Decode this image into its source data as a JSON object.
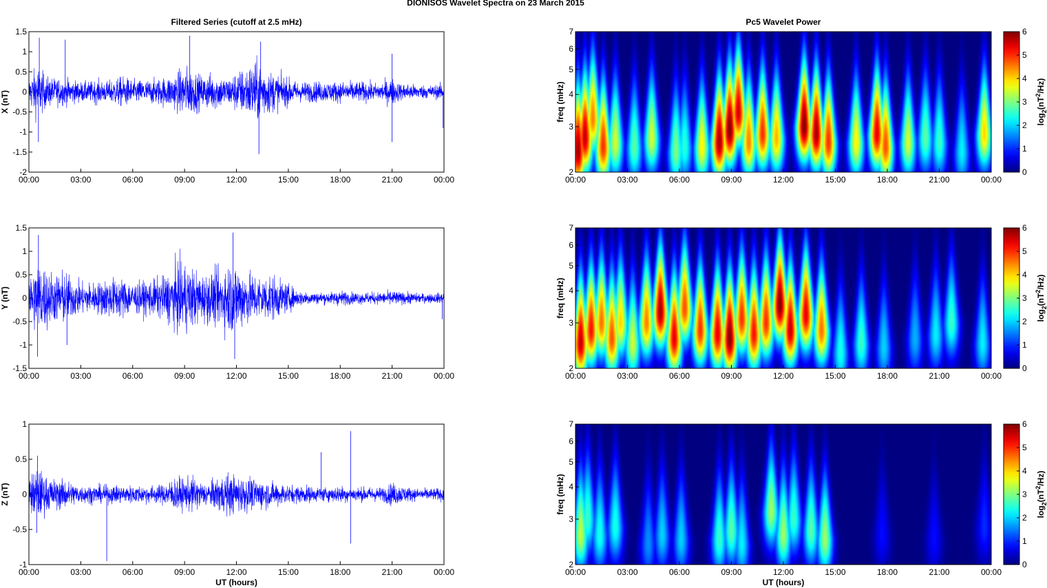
{
  "figure": {
    "title": "DIONISOS Wavelet Spectra on 23 March     2015",
    "left_title": "Filtered Series (cutoff at 2.5 mHz)",
    "right_title": "Pc5 Wavelet Power"
  },
  "colors": {
    "series_line": "#0000ff",
    "heatmap_colormap": "jet",
    "axes": "#000000"
  },
  "chart_data": [
    {
      "type": "line",
      "panel": "X",
      "title": "Filtered Series (cutoff at 2.5 mHz)",
      "ylabel": "X (nT)",
      "xlabel": "",
      "xlim": [
        0,
        24
      ],
      "ylim": [
        -2,
        1.5
      ],
      "x_tick_labels": [
        "00:00",
        "03:00",
        "06:00",
        "09:00",
        "12:00",
        "15:00",
        "18:00",
        "21:00",
        "00:00"
      ],
      "y_ticks": [
        -2,
        -1.5,
        -1,
        -0.5,
        0,
        0.5,
        1,
        1.5
      ],
      "y_tick_labels": [
        "-2",
        "-1.5",
        "-1",
        "-0.5",
        "0",
        "0.5",
        "1",
        "1.5"
      ],
      "grid": false,
      "series": [
        {
          "name": "",
          "color": "#0000ff"
        }
      ],
      "envelope": {
        "x": [
          0,
          0.5,
          1,
          1.5,
          2,
          2.5,
          3,
          3.5,
          4,
          4.5,
          5,
          5.5,
          6,
          6.5,
          7,
          7.5,
          8,
          8.5,
          9,
          9.5,
          10,
          10.5,
          11,
          11.5,
          12,
          12.5,
          13,
          13.5,
          14,
          14.5,
          15,
          15.5,
          16,
          16.5,
          17,
          17.5,
          18,
          18.5,
          19,
          19.5,
          20,
          20.5,
          21,
          21.5,
          22,
          22.5,
          23,
          23.5,
          24
        ],
        "amplitude": [
          0.4,
          0.8,
          0.45,
          0.4,
          0.4,
          0.35,
          0.3,
          0.3,
          0.35,
          0.3,
          0.4,
          0.45,
          0.35,
          0.35,
          0.35,
          0.4,
          0.45,
          0.55,
          0.75,
          0.65,
          0.45,
          0.55,
          0.5,
          0.4,
          0.6,
          0.7,
          0.9,
          0.8,
          0.6,
          0.5,
          0.4,
          0.3,
          0.3,
          0.3,
          0.3,
          0.3,
          0.3,
          0.3,
          0.3,
          0.3,
          0.25,
          0.3,
          0.4,
          0.25,
          0.25,
          0.2,
          0.2,
          0.2,
          0.25
        ]
      },
      "spikes": [
        {
          "x": 0.6,
          "y": 1.35
        },
        {
          "x": 0.55,
          "y": -1.25
        },
        {
          "x": 2.1,
          "y": 1.3
        },
        {
          "x": 9.3,
          "y": 1.4
        },
        {
          "x": 13.4,
          "y": 1.25
        },
        {
          "x": 13.3,
          "y": -1.55
        },
        {
          "x": 21.0,
          "y": 0.95
        },
        {
          "x": 21.0,
          "y": -1.25
        },
        {
          "x": 23.95,
          "y": -0.9
        }
      ]
    },
    {
      "type": "heatmap",
      "panel": "X",
      "title": "Pc5 Wavelet Power",
      "ylabel": "freq (mHz)",
      "xlabel": "",
      "xlim": [
        0,
        24
      ],
      "ylim": [
        2,
        7
      ],
      "y_scale": "log",
      "x_tick_labels": [
        "00:00",
        "03:00",
        "06:00",
        "09:00",
        "12:00",
        "15:00",
        "18:00",
        "21:00",
        "00:00"
      ],
      "y_ticks": [
        2,
        3,
        4,
        5,
        6,
        7
      ],
      "y_tick_labels": [
        "2",
        "3",
        "4",
        "5",
        "6",
        "7"
      ],
      "colorbar": {
        "label": "log2(nT^2/Hz)",
        "min": 0,
        "max": 6,
        "ticks": [
          "0",
          "1",
          "2",
          "3",
          "4",
          "5",
          "6"
        ],
        "colormap": "jet"
      },
      "bursts": [
        {
          "t": 0.15,
          "f": 2.4,
          "p": 5.8
        },
        {
          "t": 0.55,
          "f": 2.7,
          "p": 5.6
        },
        {
          "t": 1.0,
          "f": 3.2,
          "p": 4.5
        },
        {
          "t": 1.6,
          "f": 2.5,
          "p": 5.0
        },
        {
          "t": 2.3,
          "f": 2.6,
          "p": 3.5
        },
        {
          "t": 3.4,
          "f": 2.5,
          "p": 2.8
        },
        {
          "t": 4.4,
          "f": 2.7,
          "p": 3.5
        },
        {
          "t": 5.8,
          "f": 2.4,
          "p": 3.0
        },
        {
          "t": 6.3,
          "f": 2.5,
          "p": 2.5
        },
        {
          "t": 7.3,
          "f": 2.5,
          "p": 3.8
        },
        {
          "t": 8.3,
          "f": 2.6,
          "p": 5.8
        },
        {
          "t": 8.9,
          "f": 2.9,
          "p": 6.0
        },
        {
          "t": 9.4,
          "f": 3.4,
          "p": 5.5
        },
        {
          "t": 10.0,
          "f": 2.6,
          "p": 4.5
        },
        {
          "t": 10.8,
          "f": 2.8,
          "p": 5.0
        },
        {
          "t": 11.6,
          "f": 2.7,
          "p": 4.2
        },
        {
          "t": 13.2,
          "f": 3.0,
          "p": 6.0
        },
        {
          "t": 13.9,
          "f": 2.8,
          "p": 5.8
        },
        {
          "t": 14.6,
          "f": 2.6,
          "p": 5.0
        },
        {
          "t": 16.2,
          "f": 2.6,
          "p": 3.8
        },
        {
          "t": 17.4,
          "f": 2.8,
          "p": 5.4
        },
        {
          "t": 17.9,
          "f": 2.5,
          "p": 4.8
        },
        {
          "t": 19.2,
          "f": 2.6,
          "p": 3.5
        },
        {
          "t": 20.2,
          "f": 2.7,
          "p": 2.8
        },
        {
          "t": 21.0,
          "f": 2.6,
          "p": 2.6
        },
        {
          "t": 22.3,
          "f": 2.4,
          "p": 2.2
        },
        {
          "t": 23.6,
          "f": 2.8,
          "p": 4.0
        }
      ]
    },
    {
      "type": "line",
      "panel": "Y",
      "title": "",
      "ylabel": "Y (nT)",
      "xlabel": "",
      "xlim": [
        0,
        24
      ],
      "ylim": [
        -1.5,
        1.5
      ],
      "x_tick_labels": [
        "00:00",
        "03:00",
        "06:00",
        "09:00",
        "12:00",
        "15:00",
        "18:00",
        "21:00",
        "00:00"
      ],
      "y_ticks": [
        -1.5,
        -1,
        -0.5,
        0,
        0.5,
        1,
        1.5
      ],
      "y_tick_labels": [
        "-1.5",
        "-1",
        "-0.5",
        "0",
        "0.5",
        "1",
        "1.5"
      ],
      "grid": false,
      "series": [
        {
          "name": "",
          "color": "#0000ff"
        }
      ],
      "envelope": {
        "x": [
          0,
          0.5,
          1,
          1.5,
          2,
          2.5,
          3,
          3.5,
          4,
          4.5,
          5,
          5.5,
          6,
          6.5,
          7,
          7.5,
          8,
          8.5,
          9,
          9.5,
          10,
          10.5,
          11,
          11.5,
          12,
          12.5,
          13,
          13.5,
          14,
          14.5,
          15,
          15.5,
          16,
          16.5,
          17,
          17.5,
          18,
          18.5,
          19,
          19.5,
          20,
          20.5,
          21,
          21.5,
          22,
          22.5,
          23,
          23.5,
          24
        ],
        "amplitude": [
          0.6,
          0.9,
          0.8,
          0.6,
          0.7,
          0.5,
          0.4,
          0.4,
          0.4,
          0.5,
          0.5,
          0.5,
          0.4,
          0.4,
          0.45,
          0.5,
          0.6,
          0.85,
          0.9,
          0.75,
          0.6,
          0.65,
          0.7,
          0.9,
          0.9,
          0.7,
          0.6,
          0.55,
          0.6,
          0.45,
          0.35,
          0.2,
          0.18,
          0.15,
          0.15,
          0.15,
          0.2,
          0.15,
          0.15,
          0.15,
          0.15,
          0.15,
          0.2,
          0.15,
          0.15,
          0.12,
          0.12,
          0.12,
          0.15
        ]
      },
      "spikes": [
        {
          "x": 0.55,
          "y": 1.35
        },
        {
          "x": 0.5,
          "y": -1.25
        },
        {
          "x": 2.2,
          "y": -1.0
        },
        {
          "x": 11.8,
          "y": 1.4
        },
        {
          "x": 11.9,
          "y": -1.3
        },
        {
          "x": 23.9,
          "y": -0.45
        }
      ]
    },
    {
      "type": "heatmap",
      "panel": "Y",
      "title": "",
      "ylabel": "freq (mHz)",
      "xlabel": "",
      "xlim": [
        0,
        24
      ],
      "ylim": [
        2,
        7
      ],
      "y_scale": "log",
      "x_tick_labels": [
        "00:00",
        "03:00",
        "06:00",
        "09:00",
        "12:00",
        "15:00",
        "18:00",
        "21:00",
        "00:00"
      ],
      "y_ticks": [
        2,
        3,
        4,
        5,
        6,
        7
      ],
      "y_tick_labels": [
        "2",
        "3",
        "4",
        "5",
        "6",
        "7"
      ],
      "colorbar": {
        "label": "log2(nT^2/Hz)",
        "min": 0,
        "max": 6,
        "ticks": [
          "0",
          "1",
          "2",
          "3",
          "4",
          "5",
          "6"
        ],
        "colormap": "jet"
      },
      "bursts": [
        {
          "t": 0.3,
          "f": 2.5,
          "p": 5.6
        },
        {
          "t": 0.9,
          "f": 2.8,
          "p": 5.2
        },
        {
          "t": 1.5,
          "f": 3.0,
          "p": 4.6
        },
        {
          "t": 2.1,
          "f": 2.6,
          "p": 4.8
        },
        {
          "t": 2.6,
          "f": 3.0,
          "p": 4.0
        },
        {
          "t": 3.3,
          "f": 2.5,
          "p": 3.5
        },
        {
          "t": 4.1,
          "f": 3.0,
          "p": 4.5
        },
        {
          "t": 4.9,
          "f": 3.3,
          "p": 5.8
        },
        {
          "t": 5.7,
          "f": 2.6,
          "p": 5.4
        },
        {
          "t": 6.3,
          "f": 3.4,
          "p": 4.8
        },
        {
          "t": 7.2,
          "f": 2.8,
          "p": 5.0
        },
        {
          "t": 8.2,
          "f": 2.7,
          "p": 5.4
        },
        {
          "t": 8.9,
          "f": 2.6,
          "p": 6.0
        },
        {
          "t": 9.6,
          "f": 3.1,
          "p": 5.0
        },
        {
          "t": 10.3,
          "f": 2.7,
          "p": 5.2
        },
        {
          "t": 11.0,
          "f": 3.0,
          "p": 5.0
        },
        {
          "t": 11.8,
          "f": 3.5,
          "p": 6.0
        },
        {
          "t": 12.4,
          "f": 2.8,
          "p": 5.6
        },
        {
          "t": 13.3,
          "f": 3.2,
          "p": 5.4
        },
        {
          "t": 14.2,
          "f": 2.8,
          "p": 4.6
        },
        {
          "t": 15.3,
          "f": 2.3,
          "p": 2.4
        },
        {
          "t": 16.5,
          "f": 2.5,
          "p": 2.6
        },
        {
          "t": 17.8,
          "f": 2.4,
          "p": 2.0
        },
        {
          "t": 19.6,
          "f": 2.6,
          "p": 1.8
        },
        {
          "t": 20.8,
          "f": 2.7,
          "p": 2.2
        },
        {
          "t": 21.7,
          "f": 3.0,
          "p": 2.6
        },
        {
          "t": 23.5,
          "f": 2.5,
          "p": 2.2
        }
      ]
    },
    {
      "type": "line",
      "panel": "Z",
      "title": "",
      "ylabel": "Z (nT)",
      "xlabel": "UT (hours)",
      "xlim": [
        0,
        24
      ],
      "ylim": [
        -1,
        1
      ],
      "x_tick_labels": [
        "00:00",
        "03:00",
        "06:00",
        "09:00",
        "12:00",
        "15:00",
        "18:00",
        "21:00",
        "00:00"
      ],
      "y_ticks": [
        -1,
        -0.5,
        0,
        0.5,
        1
      ],
      "y_tick_labels": [
        "-1",
        "-0.5",
        "0",
        "0.5",
        "1"
      ],
      "grid": false,
      "series": [
        {
          "name": "",
          "color": "#0000ff"
        }
      ],
      "envelope": {
        "x": [
          0,
          0.5,
          1,
          1.5,
          2,
          2.5,
          3,
          3.5,
          4,
          4.5,
          5,
          5.5,
          6,
          6.5,
          7,
          7.5,
          8,
          8.5,
          9,
          9.5,
          10,
          10.5,
          11,
          11.5,
          12,
          12.5,
          13,
          13.5,
          14,
          14.5,
          15,
          15.5,
          16,
          16.5,
          17,
          17.5,
          18,
          18.5,
          19,
          19.5,
          20,
          20.5,
          21,
          21.5,
          22,
          22.5,
          23,
          23.5,
          24
        ],
        "amplitude": [
          0.3,
          0.45,
          0.3,
          0.25,
          0.25,
          0.2,
          0.15,
          0.15,
          0.15,
          0.15,
          0.15,
          0.15,
          0.15,
          0.15,
          0.15,
          0.15,
          0.2,
          0.3,
          0.25,
          0.3,
          0.2,
          0.2,
          0.3,
          0.35,
          0.3,
          0.3,
          0.25,
          0.25,
          0.2,
          0.2,
          0.15,
          0.15,
          0.15,
          0.12,
          0.12,
          0.12,
          0.15,
          0.12,
          0.12,
          0.12,
          0.12,
          0.12,
          0.2,
          0.15,
          0.12,
          0.1,
          0.1,
          0.1,
          0.12
        ]
      },
      "spikes": [
        {
          "x": 0.5,
          "y": 0.55
        },
        {
          "x": 0.45,
          "y": -0.55
        },
        {
          "x": 4.5,
          "y": -0.95
        },
        {
          "x": 16.9,
          "y": 0.6
        },
        {
          "x": 18.6,
          "y": 0.9
        },
        {
          "x": 18.6,
          "y": -0.7
        }
      ]
    },
    {
      "type": "heatmap",
      "panel": "Z",
      "title": "",
      "ylabel": "freq (mHz)",
      "xlabel": "UT (hours)",
      "xlim": [
        0,
        24
      ],
      "ylim": [
        2,
        7
      ],
      "y_scale": "log",
      "x_tick_labels": [
        "00:00",
        "03:00",
        "06:00",
        "09:00",
        "12:00",
        "15:00",
        "18:00",
        "21:00",
        "00:00"
      ],
      "y_ticks": [
        2,
        3,
        4,
        5,
        6,
        7
      ],
      "y_tick_labels": [
        "2",
        "3",
        "4",
        "5",
        "6",
        "7"
      ],
      "colorbar": {
        "label": "log2(nT^2/Hz)",
        "min": 0,
        "max": 6,
        "ticks": [
          "0",
          "1",
          "2",
          "3",
          "4",
          "5",
          "6"
        ],
        "colormap": "jet"
      },
      "bursts": [
        {
          "t": 0.3,
          "f": 2.6,
          "p": 3.4
        },
        {
          "t": 0.7,
          "f": 3.0,
          "p": 2.6
        },
        {
          "t": 1.4,
          "f": 2.6,
          "p": 2.4
        },
        {
          "t": 2.3,
          "f": 2.8,
          "p": 2.4
        },
        {
          "t": 4.2,
          "f": 2.4,
          "p": 1.6
        },
        {
          "t": 5.0,
          "f": 2.6,
          "p": 2.0
        },
        {
          "t": 6.1,
          "f": 2.5,
          "p": 2.0
        },
        {
          "t": 8.3,
          "f": 2.5,
          "p": 2.6
        },
        {
          "t": 9.0,
          "f": 2.7,
          "p": 2.8
        },
        {
          "t": 9.6,
          "f": 2.4,
          "p": 2.2
        },
        {
          "t": 11.3,
          "f": 3.2,
          "p": 3.2
        },
        {
          "t": 12.0,
          "f": 2.6,
          "p": 3.2
        },
        {
          "t": 12.6,
          "f": 3.0,
          "p": 2.6
        },
        {
          "t": 13.6,
          "f": 2.7,
          "p": 2.8
        },
        {
          "t": 14.4,
          "f": 2.5,
          "p": 3.2
        },
        {
          "t": 17.7,
          "f": 2.6,
          "p": 0.8
        },
        {
          "t": 20.7,
          "f": 2.5,
          "p": 0.8
        },
        {
          "t": 23.6,
          "f": 2.8,
          "p": 1.0
        }
      ]
    }
  ]
}
